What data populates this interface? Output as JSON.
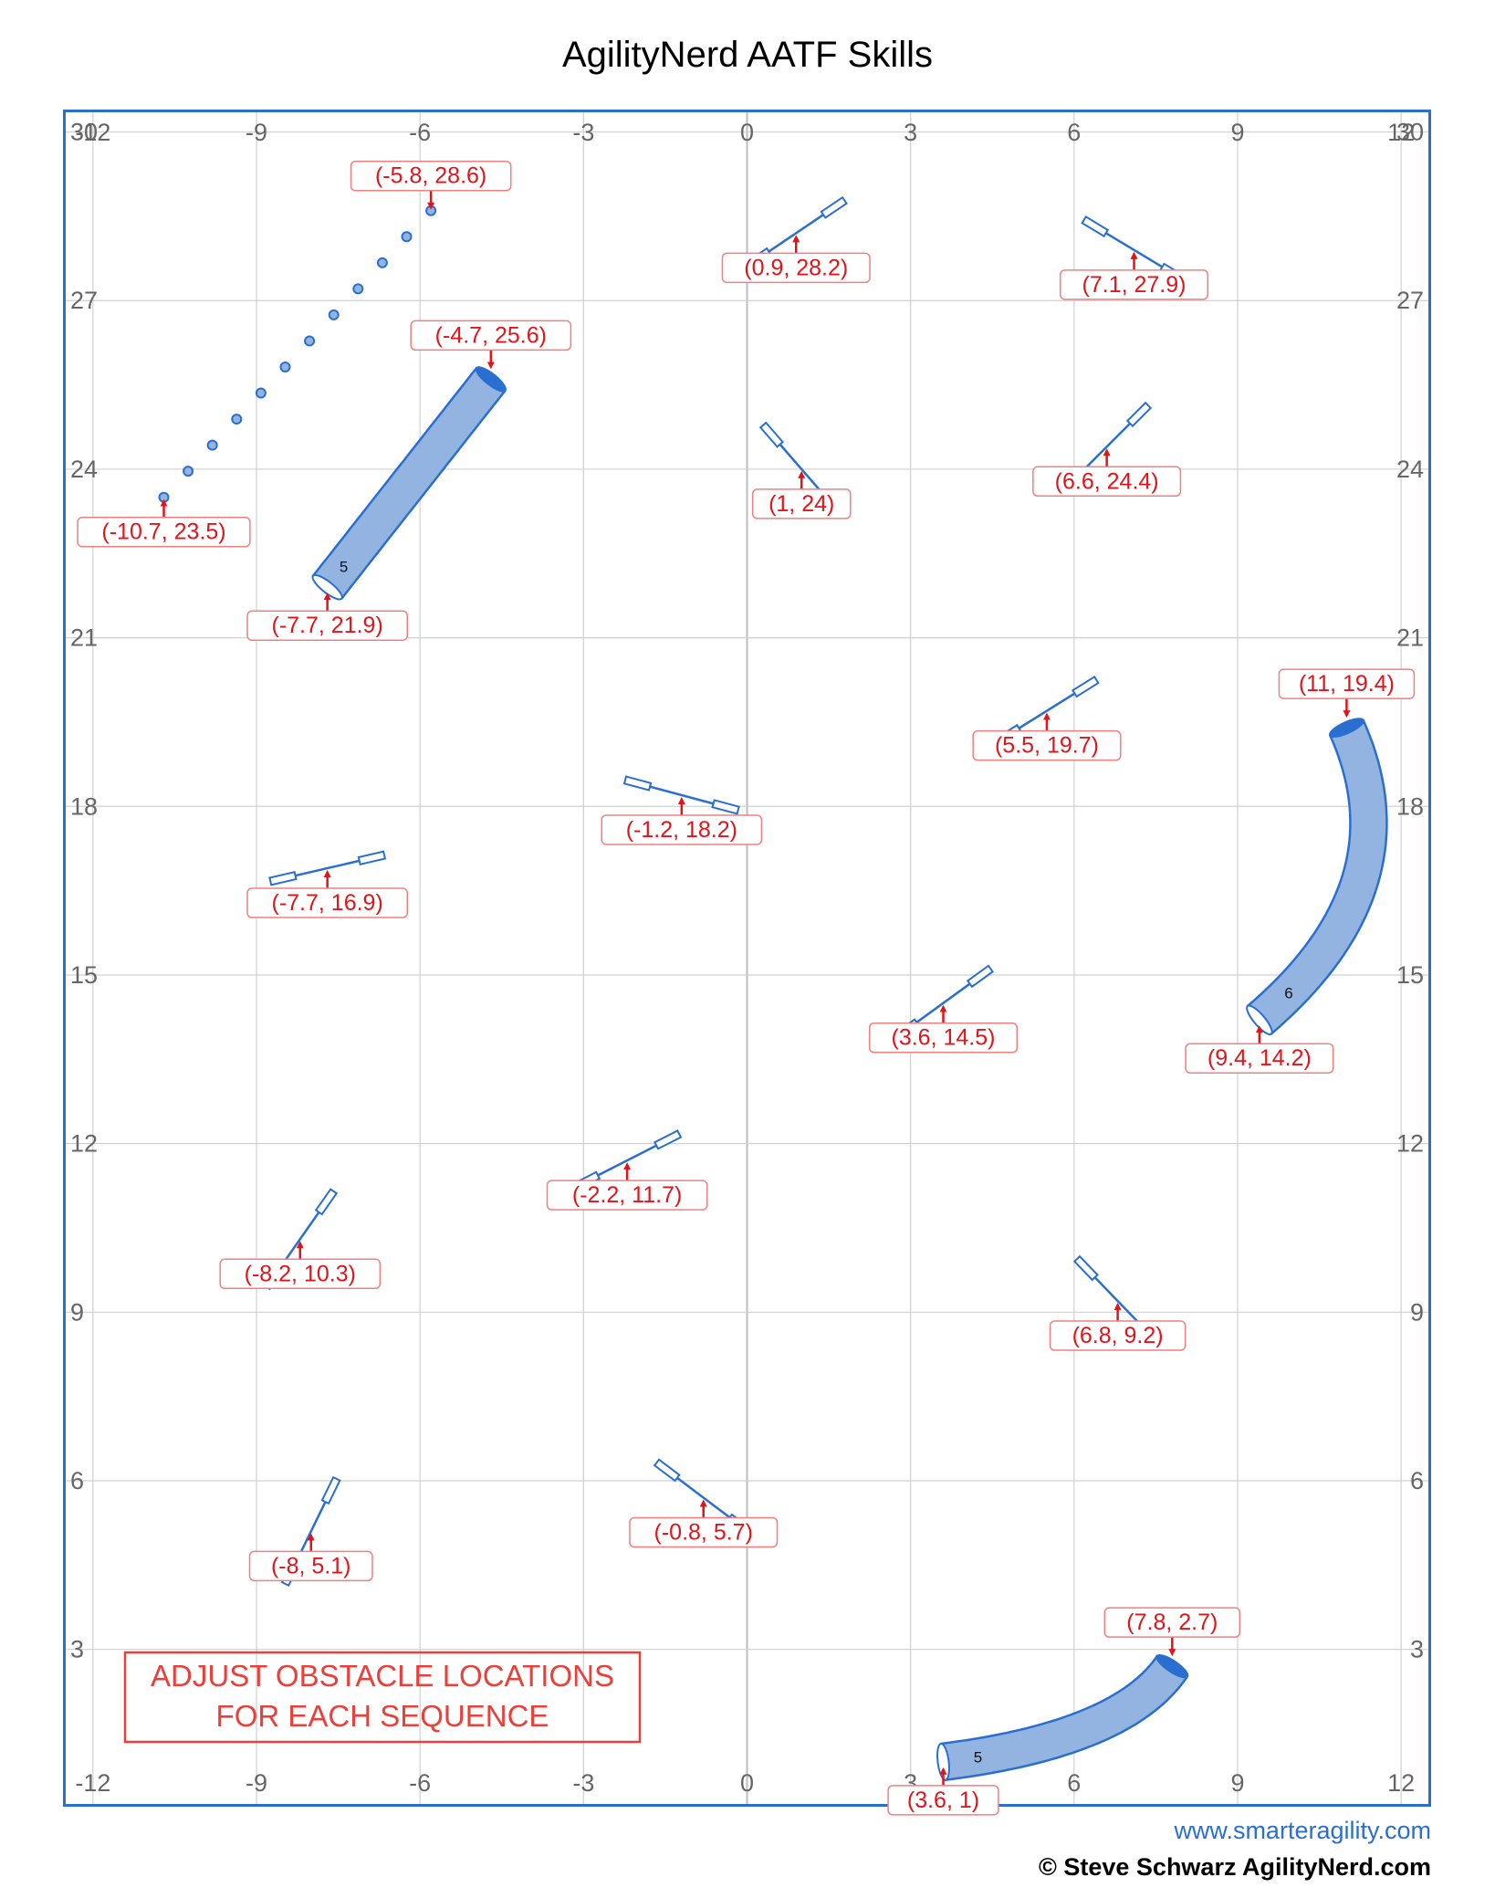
{
  "title": "AgilityNerd AATF Skills",
  "footer": {
    "website": "www.smarteragility.com",
    "copyright": "© Steve Schwarz AgilityNerd.com"
  },
  "axes": {
    "x_ticks": [
      -12,
      -9,
      -6,
      -3,
      0,
      3,
      6,
      9,
      12
    ],
    "y_ticks": [
      30,
      27,
      24,
      21,
      18,
      15,
      12,
      9,
      6,
      3
    ],
    "xlim": [
      -12.5,
      12.5
    ],
    "ylim": [
      0.25,
      30.35
    ],
    "grid": true
  },
  "colors": {
    "obstacle": "#2a6fd0",
    "tunnel_fill": "#93b4e0",
    "label": "#e0151b",
    "grid": "#d0d0d0",
    "note": "#e8403a"
  },
  "jumps": [
    {
      "label": "(0.9, 28.2)",
      "x": 0.9,
      "y": 28.2,
      "angle": 34
    },
    {
      "label": "(7.1, 27.9)",
      "x": 7.1,
      "y": 27.9,
      "angle": -31
    },
    {
      "label": "(1, 24)",
      "x": 1.0,
      "y": 24.0,
      "angle": -49
    },
    {
      "label": "(6.6, 24.4)",
      "x": 6.6,
      "y": 24.4,
      "angle": 45
    },
    {
      "label": "(5.5, 19.7)",
      "x": 5.5,
      "y": 19.7,
      "angle": 32
    },
    {
      "label": "(-1.2, 18.2)",
      "x": -1.2,
      "y": 18.2,
      "angle": -15
    },
    {
      "label": "(-7.7, 16.9)",
      "x": -7.7,
      "y": 16.9,
      "angle": 13
    },
    {
      "label": "(3.6, 14.5)",
      "x": 3.6,
      "y": 14.5,
      "angle": 36
    },
    {
      "label": "(-2.2, 11.7)",
      "x": -2.2,
      "y": 11.7,
      "angle": 27
    },
    {
      "label": "(-8.2, 10.3)",
      "x": -8.2,
      "y": 10.3,
      "angle": 55
    },
    {
      "label": "(6.8, 9.2)",
      "x": 6.8,
      "y": 9.2,
      "angle": -46
    },
    {
      "label": "(-8, 5.1)",
      "x": -8.0,
      "y": 5.1,
      "angle": 64
    },
    {
      "label": "(-0.8, 5.7)",
      "x": -0.8,
      "y": 5.7,
      "angle": -37
    }
  ],
  "weaves": {
    "start_label": "(-10.7, 23.5)",
    "end_label": "(-5.8, 28.6)",
    "start": [
      -10.7,
      23.5
    ],
    "end": [
      -5.8,
      28.6
    ],
    "poles": 12
  },
  "tunnels": [
    {
      "number": "5",
      "start_label": "(-4.7, 25.6)",
      "end_label": "(-7.7, 21.9)",
      "start": [
        -4.7,
        25.6
      ],
      "end": [
        -7.7,
        21.9
      ],
      "shape": "straight"
    },
    {
      "number": "6",
      "start_label": "(11, 19.4)",
      "end_label": "(9.4, 14.2)",
      "start": [
        11.0,
        19.4
      ],
      "end": [
        9.4,
        14.2
      ],
      "shape": "curved"
    },
    {
      "number": "5",
      "start_label": "(7.8, 2.7)",
      "end_label": "(3.6, 1)",
      "start": [
        7.8,
        2.7
      ],
      "end": [
        3.6,
        1.0
      ],
      "shape": "curved"
    }
  ],
  "note": {
    "line1": "ADJUST OBSTACLE LOCATIONS",
    "line2": "FOR EACH SEQUENCE"
  }
}
